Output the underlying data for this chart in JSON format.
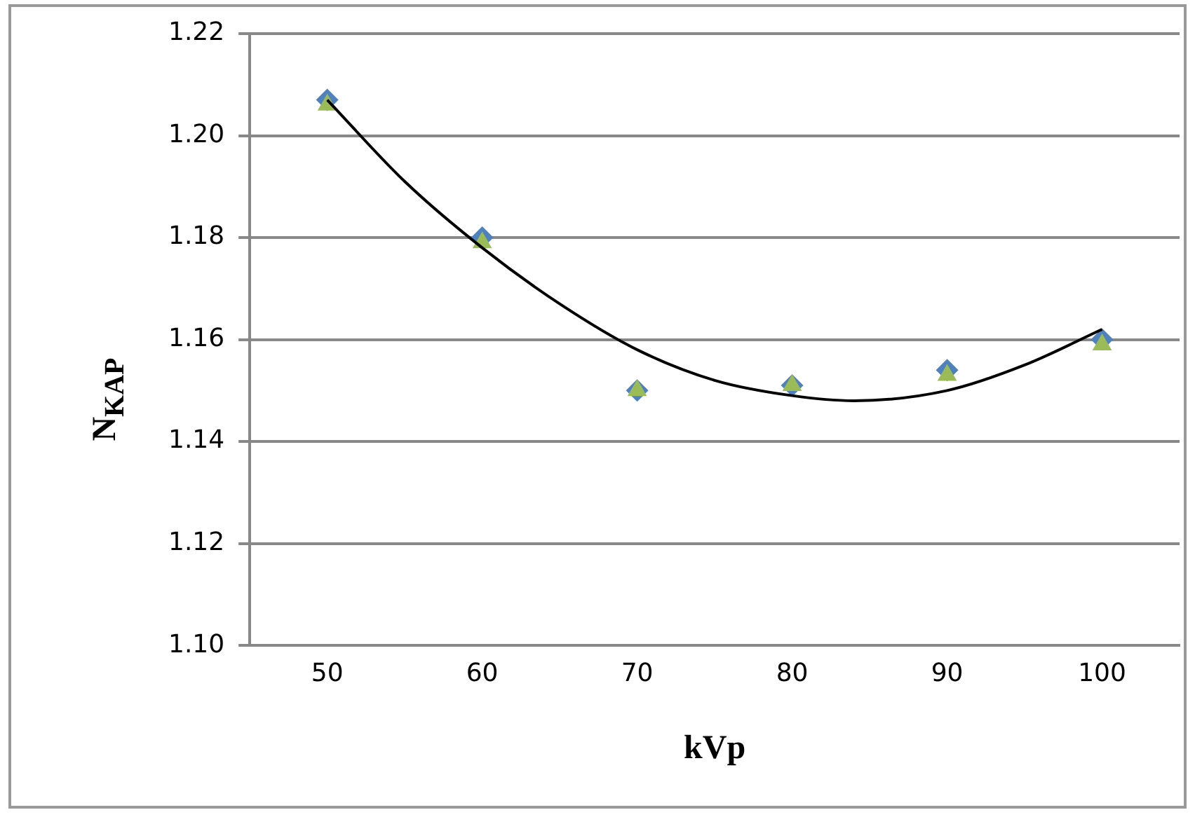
{
  "chart_data": {
    "type": "scatter",
    "xlabel": "kVp",
    "ylabel": "N$_{KAP}$",
    "x": [
      50,
      60,
      70,
      80,
      90,
      100
    ],
    "xlim": [
      45,
      105
    ],
    "xticks": [
      50,
      60,
      70,
      80,
      90,
      100
    ],
    "ylim": [
      1.1,
      1.22
    ],
    "yticks": [
      {
        "value": 1.1,
        "label": "1.10"
      },
      {
        "value": 1.12,
        "label": "1.12"
      },
      {
        "value": 1.14,
        "label": "1.14"
      },
      {
        "value": 1.16,
        "label": "1.16"
      },
      {
        "value": 1.18,
        "label": "1.18"
      },
      {
        "value": 1.2,
        "label": "1.20"
      },
      {
        "value": 1.22,
        "label": "1.22"
      }
    ],
    "grid": "y",
    "series": [
      {
        "color": "#4f81bd",
        "marker": "diamond",
        "values": [
          1.207,
          1.18,
          1.15,
          1.151,
          1.154,
          1.16
        ]
      },
      {
        "color": "#9bbb59",
        "marker": "triangle",
        "values": [
          1.206,
          1.179,
          1.15,
          1.151,
          1.153,
          1.159
        ]
      },
      {
        "type": "line",
        "color": "#000000",
        "marker": "none",
        "line_style": "solid",
        "x": [
          50,
          55,
          60,
          65,
          70,
          75,
          80,
          84,
          90,
          95,
          100
        ],
        "values": [
          1.207,
          1.191,
          1.178,
          1.167,
          1.158,
          1.152,
          1.149,
          1.148,
          1.15,
          1.155,
          1.162
        ]
      }
    ]
  }
}
